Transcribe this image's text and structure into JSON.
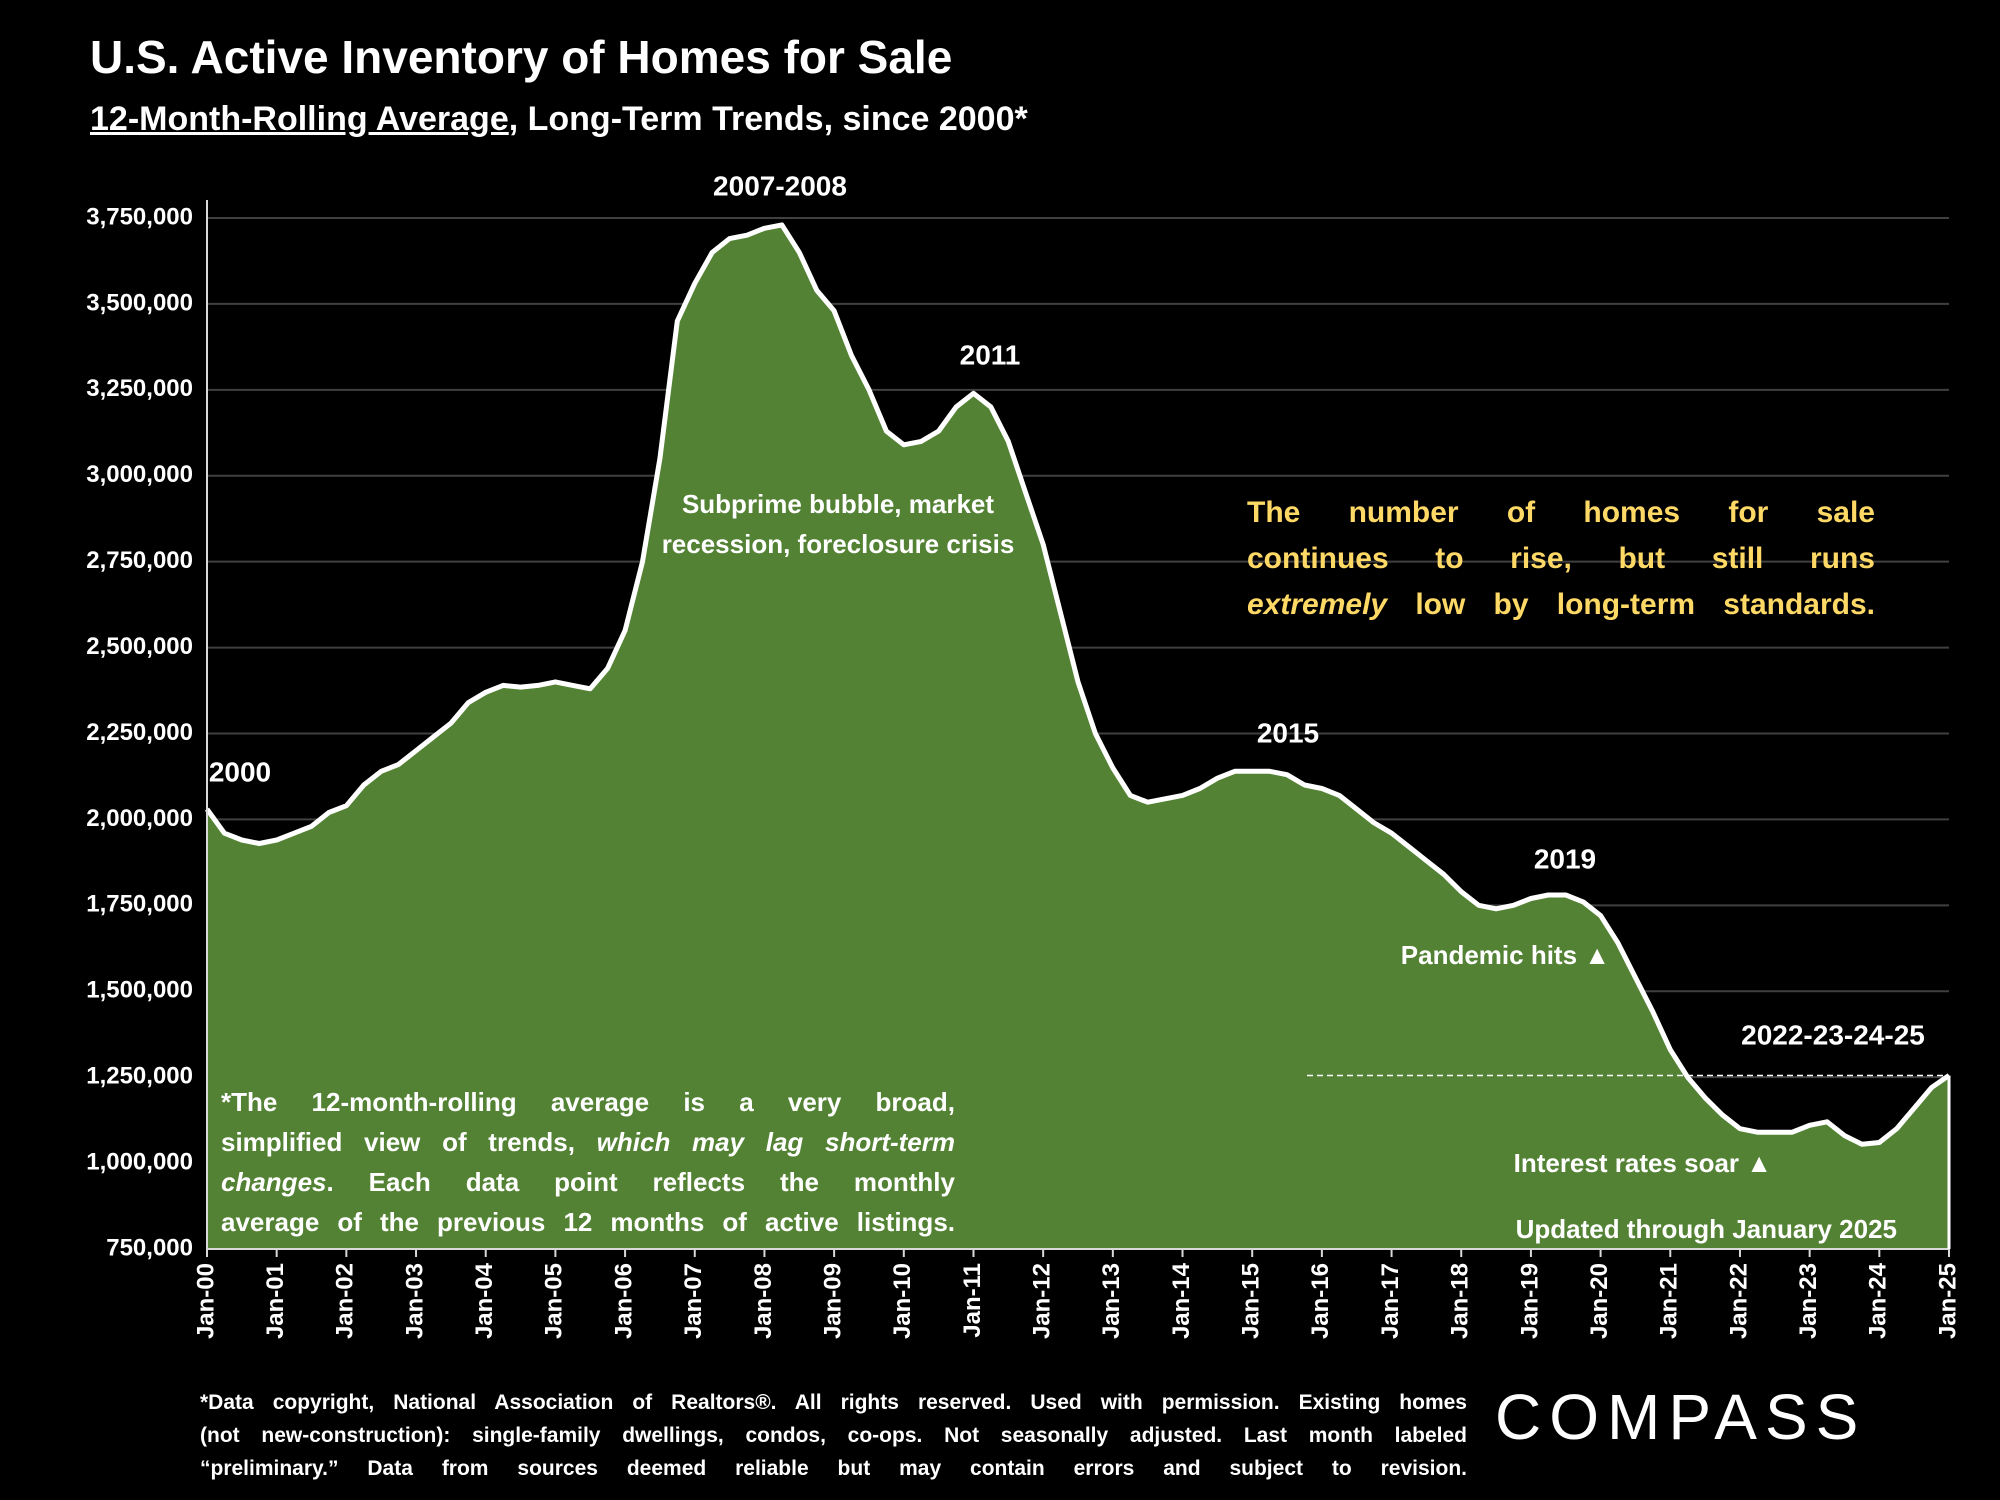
{
  "title": "U.S. Active Inventory of Homes for Sale",
  "subtitle_underlined": "12-Month-Rolling Average",
  "subtitle_rest": ", Long-Term Trends, since 2000*",
  "chart_data": {
    "type": "area",
    "categories": [
      "Jan-00",
      null,
      null,
      null,
      "Jan-01",
      null,
      null,
      null,
      "Jan-02",
      null,
      null,
      null,
      "Jan-03",
      null,
      null,
      null,
      "Jan-04",
      null,
      null,
      null,
      "Jan-05",
      null,
      null,
      null,
      "Jan-06",
      null,
      null,
      null,
      "Jan-07",
      null,
      null,
      null,
      "Jan-08",
      null,
      null,
      null,
      "Jan-09",
      null,
      null,
      null,
      "Jan-10",
      null,
      null,
      null,
      "Jan-11",
      null,
      null,
      null,
      "Jan-12",
      null,
      null,
      null,
      "Jan-13",
      null,
      null,
      null,
      "Jan-14",
      null,
      null,
      null,
      "Jan-15",
      null,
      null,
      null,
      "Jan-16",
      null,
      null,
      null,
      "Jan-17",
      null,
      null,
      null,
      "Jan-18",
      null,
      null,
      null,
      "Jan-19",
      null,
      null,
      null,
      "Jan-20",
      null,
      null,
      null,
      "Jan-21",
      null,
      null,
      null,
      "Jan-22",
      null,
      null,
      null,
      "Jan-23",
      null,
      null,
      null,
      "Jan-24",
      null,
      null,
      null,
      "Jan-25"
    ],
    "values": [
      2030000,
      1960000,
      1940000,
      1930000,
      1940000,
      1960000,
      1980000,
      2020000,
      2040000,
      2100000,
      2140000,
      2160000,
      2200000,
      2240000,
      2280000,
      2340000,
      2370000,
      2390000,
      2385000,
      2390000,
      2400000,
      2390000,
      2380000,
      2440000,
      2550000,
      2750000,
      3050000,
      3450000,
      3560000,
      3650000,
      3690000,
      3700000,
      3720000,
      3730000,
      3650000,
      3540000,
      3480000,
      3350000,
      3250000,
      3130000,
      3090000,
      3100000,
      3130000,
      3200000,
      3240000,
      3200000,
      3100000,
      2950000,
      2800000,
      2600000,
      2400000,
      2250000,
      2150000,
      2070000,
      2050000,
      2060000,
      2070000,
      2090000,
      2120000,
      2140000,
      2140000,
      2140000,
      2130000,
      2100000,
      2090000,
      2070000,
      2030000,
      1990000,
      1960000,
      1920000,
      1880000,
      1840000,
      1790000,
      1750000,
      1740000,
      1750000,
      1770000,
      1780000,
      1780000,
      1760000,
      1720000,
      1640000,
      1540000,
      1440000,
      1330000,
      1250000,
      1190000,
      1140000,
      1100000,
      1090000,
      1090000,
      1090000,
      1110000,
      1120000,
      1080000,
      1055000,
      1060000,
      1100000,
      1160000,
      1220000,
      1255000
    ],
    "color": "#548235",
    "line_color": "#ffffff",
    "ylim": [
      750000,
      3750000
    ],
    "yticks": [
      {
        "value": 750000,
        "label": "750,000"
      },
      {
        "value": 1000000,
        "label": "1,000,000"
      },
      {
        "value": 1250000,
        "label": "1,250,000"
      },
      {
        "value": 1500000,
        "label": "1,500,000"
      },
      {
        "value": 1750000,
        "label": "1,750,000"
      },
      {
        "value": 2000000,
        "label": "2,000,000"
      },
      {
        "value": 2250000,
        "label": "2,250,000"
      },
      {
        "value": 2500000,
        "label": "2,500,000"
      },
      {
        "value": 2750000,
        "label": "2,750,000"
      },
      {
        "value": 3000000,
        "label": "3,000,000"
      },
      {
        "value": 3250000,
        "label": "3,250,000"
      },
      {
        "value": 3500000,
        "label": "3,500,000"
      },
      {
        "value": 3750000,
        "label": "3,750,000"
      }
    ],
    "grid": true,
    "annotations": [
      "2000",
      "2007-2008",
      "2011",
      "2015",
      "2019",
      "2022-23-24-25",
      "Subprime bubble, market",
      "recession, foreclosure crisis",
      "Pandemic  hits ▲",
      "Interest rates soar ▲",
      "Updated through January 2025"
    ]
  },
  "callout": [
    [
      {
        "text": "The number of homes for sale"
      }
    ],
    [
      {
        "text": "continues to rise, but still runs"
      }
    ],
    [
      {
        "text": "extremely",
        "italic": true
      },
      {
        "text": " low by long-term standards."
      }
    ]
  ],
  "footnote_box": [
    [
      {
        "text": "*The 12-month-rolling average is a very broad,"
      }
    ],
    [
      {
        "text": "simplified view of trends, "
      },
      {
        "text": "which may lag short-term",
        "italic": true
      }
    ],
    [
      {
        "text": "changes",
        "italic": true
      },
      {
        "text": ". Each data point reflects the monthly"
      }
    ],
    [
      {
        "text": "average of the previous 12 months of active listings."
      }
    ]
  ],
  "source_note": [
    "*Data copyright, National Association of Realtors®. All rights reserved. Used with permission. Existing homes",
    "(not new-construction): single-family dwellings, condos, co-ops. Not seasonally adjusted. Last month labeled",
    "“preliminary.” Data from sources deemed reliable but may contain errors and subject to revision."
  ],
  "logo": "COMPASS"
}
